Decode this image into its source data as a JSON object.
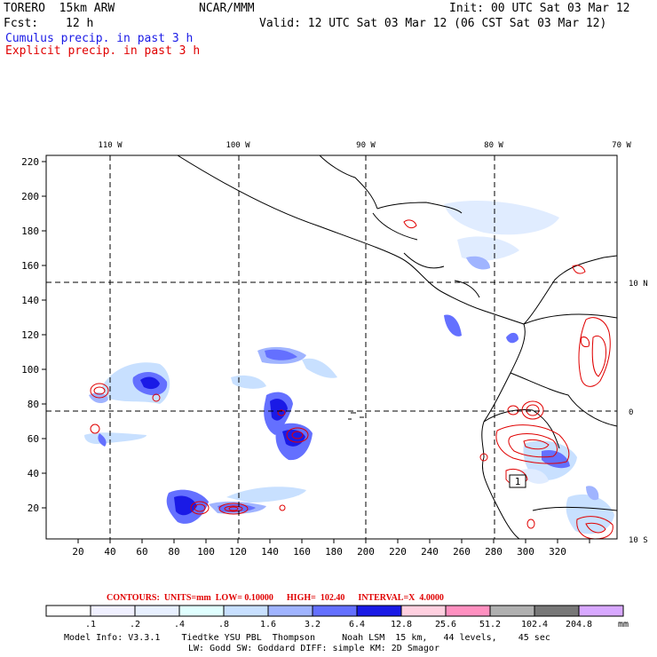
{
  "header": {
    "model": "TORERO  15km ARW",
    "org": "NCAR/MMM",
    "init": "Init: 00 UTC Sat 03 Mar 12",
    "fcst_label": "Fcst:",
    "fcst_value": "12 h",
    "valid": "Valid: 12 UTC Sat 03 Mar 12 (06 CST Sat 03 Mar 12)",
    "line_cumulus": "Cumulus precip. in past 3 h",
    "line_explicit": "Explicit precip. in past 3 h"
  },
  "map": {
    "lon_labels": [
      "110 W",
      "100 W",
      "90 W",
      "80 W",
      "70 W"
    ],
    "lat_labels": [
      "10 N",
      "0",
      "10 S"
    ],
    "y_ticks": [
      "220",
      "200",
      "180",
      "160",
      "140",
      "120",
      "100",
      "80",
      "60",
      "40",
      "20"
    ],
    "x_ticks": [
      "20",
      "40",
      "60",
      "80",
      "100",
      "120",
      "140",
      "160",
      "180",
      "200",
      "220",
      "240",
      "260",
      "280",
      "300",
      "320"
    ],
    "precip_marker": "1",
    "colors": {
      "cumulus_text": "#1a1ae6",
      "explicit_contour": "#e00000"
    }
  },
  "contour_info": "CONTOURS:  UNITS=mm  LOW= 0.10000      HIGH=  102.40      INTERVAL=X  4.0000",
  "colorbar": {
    "labels": [
      ".1",
      ".2",
      ".4",
      ".8",
      "1.6",
      "3.2",
      "6.4",
      "12.8",
      "25.6",
      "51.2",
      "102.4",
      "204.8"
    ],
    "units": "mm",
    "colors": [
      "#ffffff",
      "#f0f0ff",
      "#e8f0ff",
      "#e0ffff",
      "#c8e0ff",
      "#a0b4ff",
      "#6470ff",
      "#1a1ae6",
      "#ffd0e0",
      "#ff90c0",
      "#b0b0b0",
      "#787878",
      "#d8a8ff"
    ]
  },
  "model_info": {
    "line1": "Model Info: V3.3.1    Tiedtke YSU PBL  Thompson     Noah LSM  15 km,   44 levels,    45 sec",
    "line2": "LW: Godd SW: Goddard DIFF: simple KM: 2D Smagor"
  }
}
